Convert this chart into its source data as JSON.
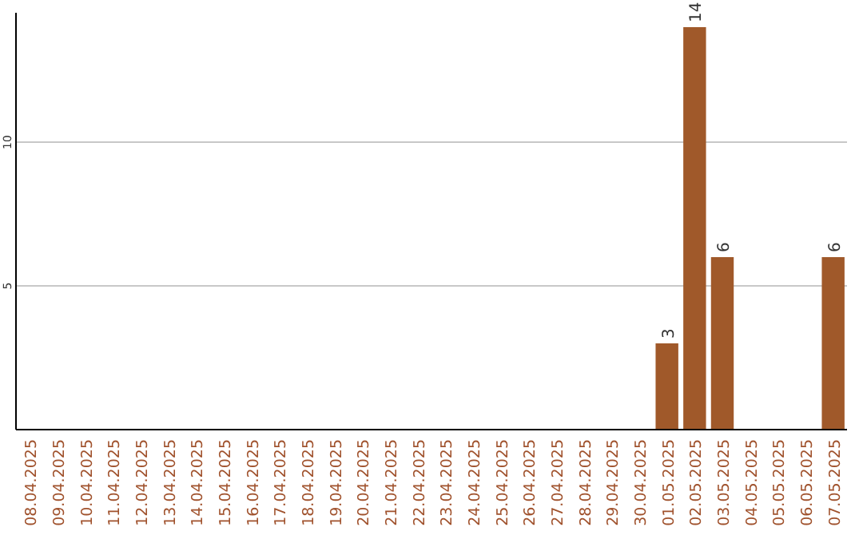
{
  "chart_data": {
    "type": "bar",
    "categories": [
      "08.04.2025",
      "09.04.2025",
      "10.04.2025",
      "11.04.2025",
      "12.04.2025",
      "13.04.2025",
      "14.04.2025",
      "15.04.2025",
      "16.04.2025",
      "17.04.2025",
      "18.04.2025",
      "19.04.2025",
      "20.04.2025",
      "21.04.2025",
      "22.04.2025",
      "23.04.2025",
      "24.04.2025",
      "25.04.2025",
      "26.04.2025",
      "27.04.2025",
      "28.04.2025",
      "29.04.2025",
      "30.04.2025",
      "01.05.2025",
      "02.05.2025",
      "03.05.2025",
      "04.05.2025",
      "05.05.2025",
      "06.05.2025",
      "07.05.2025"
    ],
    "values": [
      0,
      0,
      0,
      0,
      0,
      0,
      0,
      0,
      0,
      0,
      0,
      0,
      0,
      0,
      0,
      0,
      0,
      0,
      0,
      0,
      0,
      0,
      0,
      3,
      14,
      6,
      0,
      0,
      0,
      6
    ],
    "value_labels": [
      null,
      null,
      null,
      null,
      null,
      null,
      null,
      null,
      null,
      null,
      null,
      null,
      null,
      null,
      null,
      null,
      null,
      null,
      null,
      null,
      null,
      null,
      null,
      "3",
      "14",
      "6",
      null,
      null,
      null,
      "6"
    ],
    "color": "#a0592a",
    "ylim": [
      0,
      14.5
    ],
    "yticks": [
      5,
      10
    ],
    "grid": "y"
  }
}
